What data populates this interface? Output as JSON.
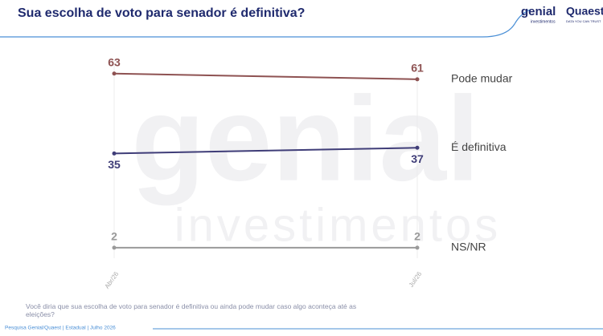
{
  "header": {
    "logo_genial": "genial",
    "logo_genial_sub": "investimentos",
    "logo_quaest": "Quaest",
    "logo_quaest_sub": "DATA YOU CAN TRUST"
  },
  "watermark": {
    "main": "genial",
    "sub": "investimentos"
  },
  "chart_data": {
    "type": "line",
    "title": "Sua escolha de voto para senador é definitiva?",
    "categories": [
      "Abr/26",
      "Jul/26"
    ],
    "series": [
      {
        "name": "Pode mudar",
        "color": "#8e5252",
        "values": [
          63,
          61
        ]
      },
      {
        "name": "É definitiva",
        "color": "#3f3d78",
        "values": [
          35,
          37
        ]
      },
      {
        "name": "NS/NR",
        "color": "#9a9a9a",
        "values": [
          2,
          2
        ]
      }
    ]
  },
  "footnote": "Você diria que sua escolha de voto para senador é definitiva ou ainda pode mudar caso algo aconteça até as eleições?",
  "source": "Pesquisa Genial/Quaest | Estadual | Julho 2026"
}
